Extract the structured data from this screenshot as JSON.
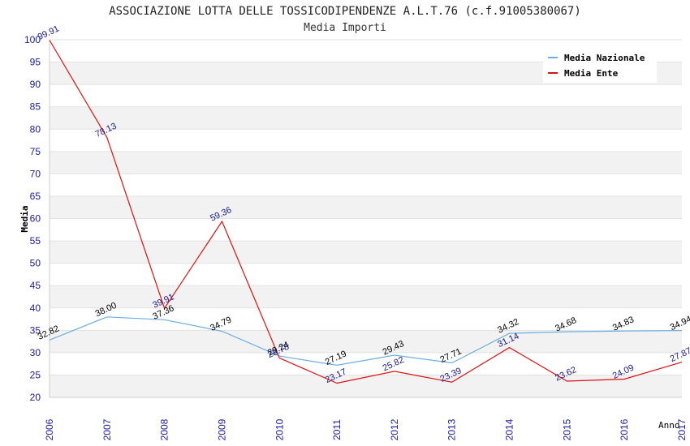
{
  "chart_data": {
    "type": "line",
    "title": "ASSOCIAZIONE LOTTA DELLE TOSSICODIPENDENZE A.L.T.76 (c.f.91005380067)",
    "subtitle": "Media Importi",
    "ylabel": "Media",
    "xlabel": "Anno",
    "x": [
      "2006",
      "2007",
      "2008",
      "2009",
      "2010",
      "2011",
      "2012",
      "2013",
      "2014",
      "2015",
      "2016",
      "2017"
    ],
    "ylim": [
      20,
      100
    ],
    "yticks": [
      20,
      25,
      30,
      35,
      40,
      45,
      50,
      55,
      60,
      65,
      70,
      75,
      80,
      85,
      90,
      95,
      100
    ],
    "series": [
      {
        "name": "Media Nazionale",
        "color": "#6aaee6",
        "label_color": "#000000",
        "values": [
          32.82,
          38.0,
          37.36,
          34.79,
          29.24,
          27.19,
          29.43,
          27.71,
          34.32,
          34.68,
          34.83,
          34.94
        ],
        "labels": [
          "32.82",
          "38.00",
          "37.36",
          "34.79",
          "29.24",
          "27.19",
          "29.43",
          "27.71",
          "34.32",
          "34.68",
          "34.83",
          "34.94"
        ]
      },
      {
        "name": "Media Ente",
        "color": "#e01010",
        "label_color": "#1a1a8c",
        "values": [
          99.91,
          78.13,
          39.91,
          59.36,
          28.78,
          23.17,
          25.82,
          23.39,
          31.14,
          23.62,
          24.09,
          27.87
        ],
        "labels": [
          "99.91",
          "78.13",
          "39.91",
          "59.36",
          "28.78",
          "23.17",
          "25.82",
          "23.39",
          "31.14",
          "23.62",
          "24.09",
          "27.87"
        ]
      }
    ],
    "grid": true,
    "legend_position": "top-right"
  }
}
